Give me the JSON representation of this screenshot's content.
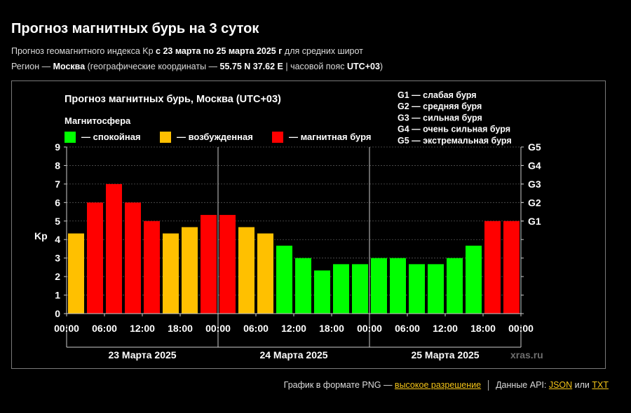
{
  "header": {
    "title": "Прогноз магнитных бурь на 3 суток",
    "line1_prefix": "Прогноз геомагнитного индекса Kp ",
    "line1_bold": "с 23 марта по 25 марта 2025 г",
    "line1_suffix": " для средних широт",
    "line2_prefix": "Регион — ",
    "line2_region": "Москва",
    "line2_mid": " (географические координаты — ",
    "line2_coords": "55.75 N 37.62 E",
    "line2_tz_prefix": " | часовой пояс ",
    "line2_tz": "UTC+03",
    "line2_suffix": ")"
  },
  "colors": {
    "calm": "#00ff00",
    "excited": "#ffc000",
    "storm": "#ff0000",
    "background": "#000000",
    "text": "#ffffff",
    "link": "#f5c518"
  },
  "chart_data": {
    "type": "bar",
    "title": "Прогноз магнитных бурь, Москва (UTC+03)",
    "legend_title": "Магнитосфера",
    "legend": [
      {
        "label": "— спокойная",
        "color": "#00ff00"
      },
      {
        "label": "— возбужденная",
        "color": "#ffc000"
      },
      {
        "label": "— магнитная буря",
        "color": "#ff0000"
      }
    ],
    "g_legend": [
      "G1 — слабая буря",
      "G2 — средняя буря",
      "G3 — сильная буря",
      "G4 — очень сильная буря",
      "G5 — экстремальная буря"
    ],
    "ylabel": "Kp",
    "ylim": [
      0,
      9
    ],
    "yticks": [
      "0",
      "1",
      "2",
      "3",
      "4",
      "5",
      "6",
      "7",
      "8",
      "9"
    ],
    "g_levels": [
      {
        "label": "G1",
        "kp": 5
      },
      {
        "label": "G2",
        "kp": 6
      },
      {
        "label": "G3",
        "kp": 7
      },
      {
        "label": "G4",
        "kp": 8
      },
      {
        "label": "G5",
        "kp": 9
      }
    ],
    "xticks": [
      "00:00",
      "06:00",
      "12:00",
      "18:00",
      "00:00",
      "06:00",
      "12:00",
      "18:00",
      "00:00",
      "06:00",
      "12:00",
      "18:00",
      "00:00"
    ],
    "days": [
      "23 Марта 2025",
      "24 Марта 2025",
      "25 Марта 2025"
    ],
    "values": [
      4.33,
      6,
      7,
      6,
      5,
      4.33,
      4.67,
      5.33,
      5.33,
      4.67,
      4.33,
      3.67,
      3,
      2.33,
      2.67,
      2.67,
      3,
      3,
      2.67,
      2.67,
      3,
      3.67,
      5,
      5
    ],
    "grid": true,
    "watermark": "xras.ru"
  },
  "footer": {
    "png_text": "График в формате PNG — ",
    "png_link": "высокое разрешение",
    "api_text": "Данные API: ",
    "json_link": "JSON",
    "or_text": " или ",
    "txt_link": "TXT"
  }
}
